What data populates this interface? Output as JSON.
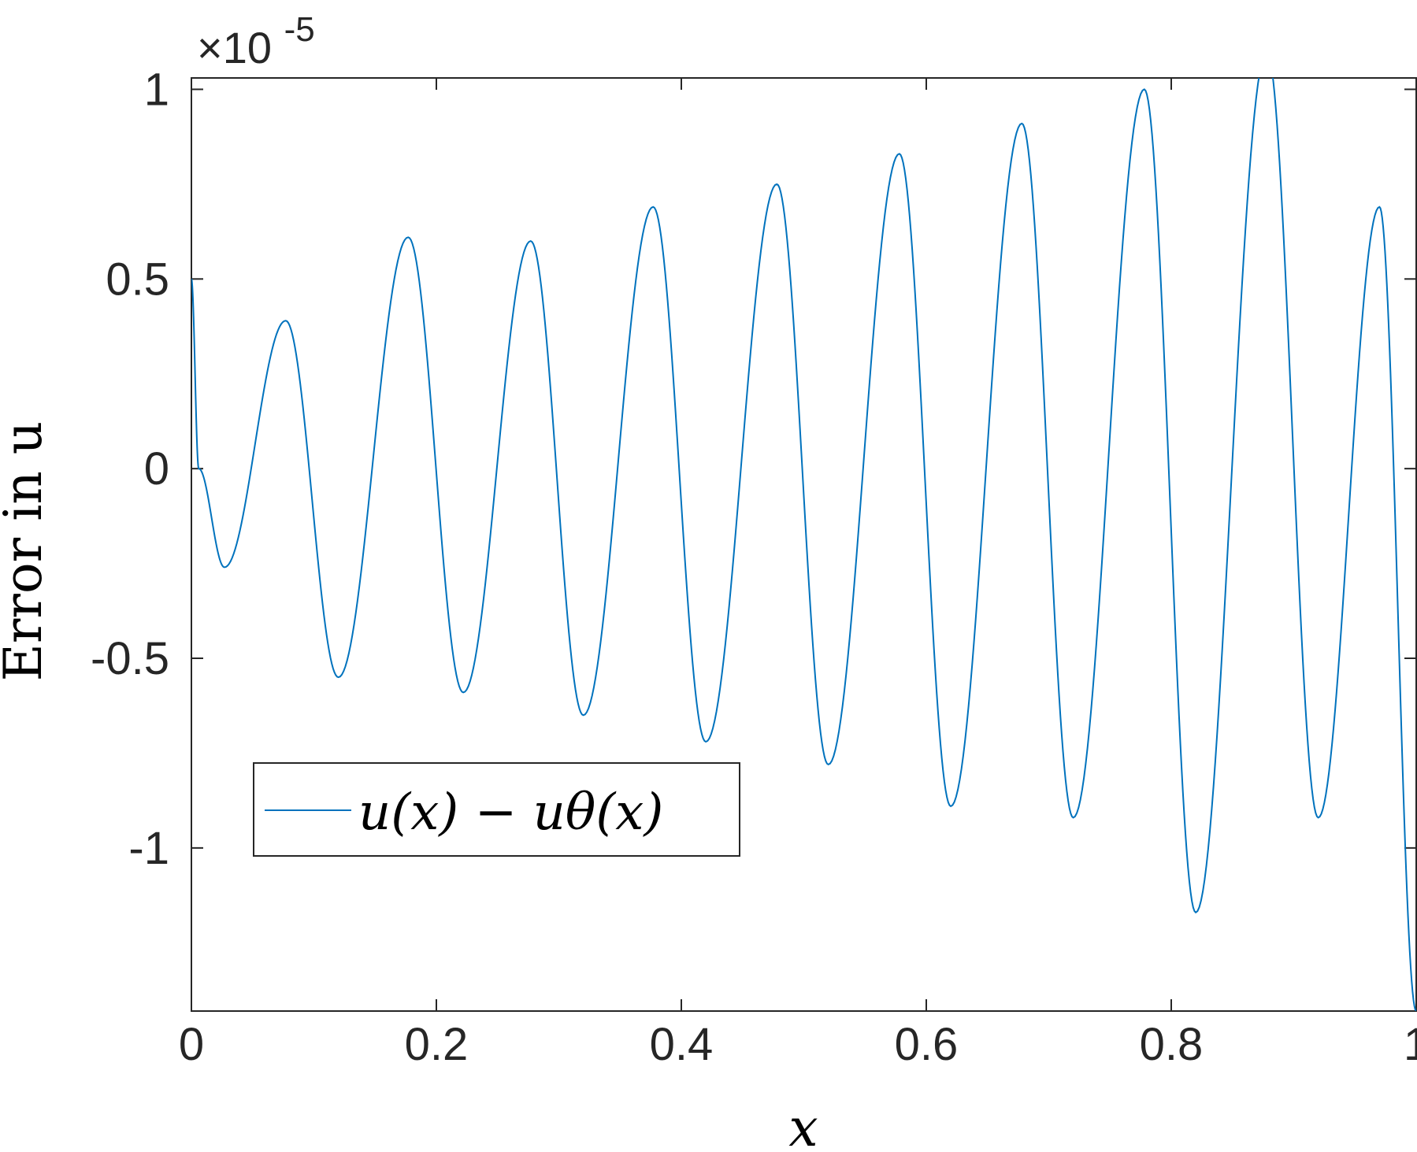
{
  "chart_data": {
    "type": "line",
    "title": "",
    "xlabel": "x",
    "ylabel": "Error in u",
    "xlim": [
      0,
      1
    ],
    "ylim": [
      -1.43,
      1.03
    ],
    "y_multiplier_text": "×10",
    "y_multiplier_exponent": "-5",
    "x_ticks": [
      0,
      0.2,
      0.4,
      0.6,
      0.8,
      1
    ],
    "x_tick_labels": [
      "0",
      "0.2",
      "0.4",
      "0.6",
      "0.8",
      "1"
    ],
    "y_ticks": [
      1,
      0.5,
      0,
      -0.5,
      -1
    ],
    "y_tick_labels": [
      "1",
      "0.5",
      "0",
      "-0.5",
      "-1"
    ],
    "grid": false,
    "box": true,
    "legend_position": "bottom-left",
    "series": [
      {
        "name": "u(x) − uθ(x)",
        "color": "#0072BD",
        "x": [
          0,
          0.006,
          0.027,
          0.077,
          0.12,
          0.177,
          0.222,
          0.277,
          0.32,
          0.377,
          0.42,
          0.478,
          0.52,
          0.578,
          0.62,
          0.678,
          0.72,
          0.778,
          0.82,
          0.878,
          0.92,
          0.97,
          1.0
        ],
        "values": [
          0.5,
          0.0,
          -0.26,
          0.39,
          -0.55,
          0.61,
          -0.59,
          0.6,
          -0.65,
          0.69,
          -0.72,
          0.75,
          -0.78,
          0.83,
          -0.89,
          0.91,
          -0.92,
          1.0,
          -1.17,
          1.1,
          -0.92,
          0.69,
          -1.43
        ]
      }
    ]
  }
}
